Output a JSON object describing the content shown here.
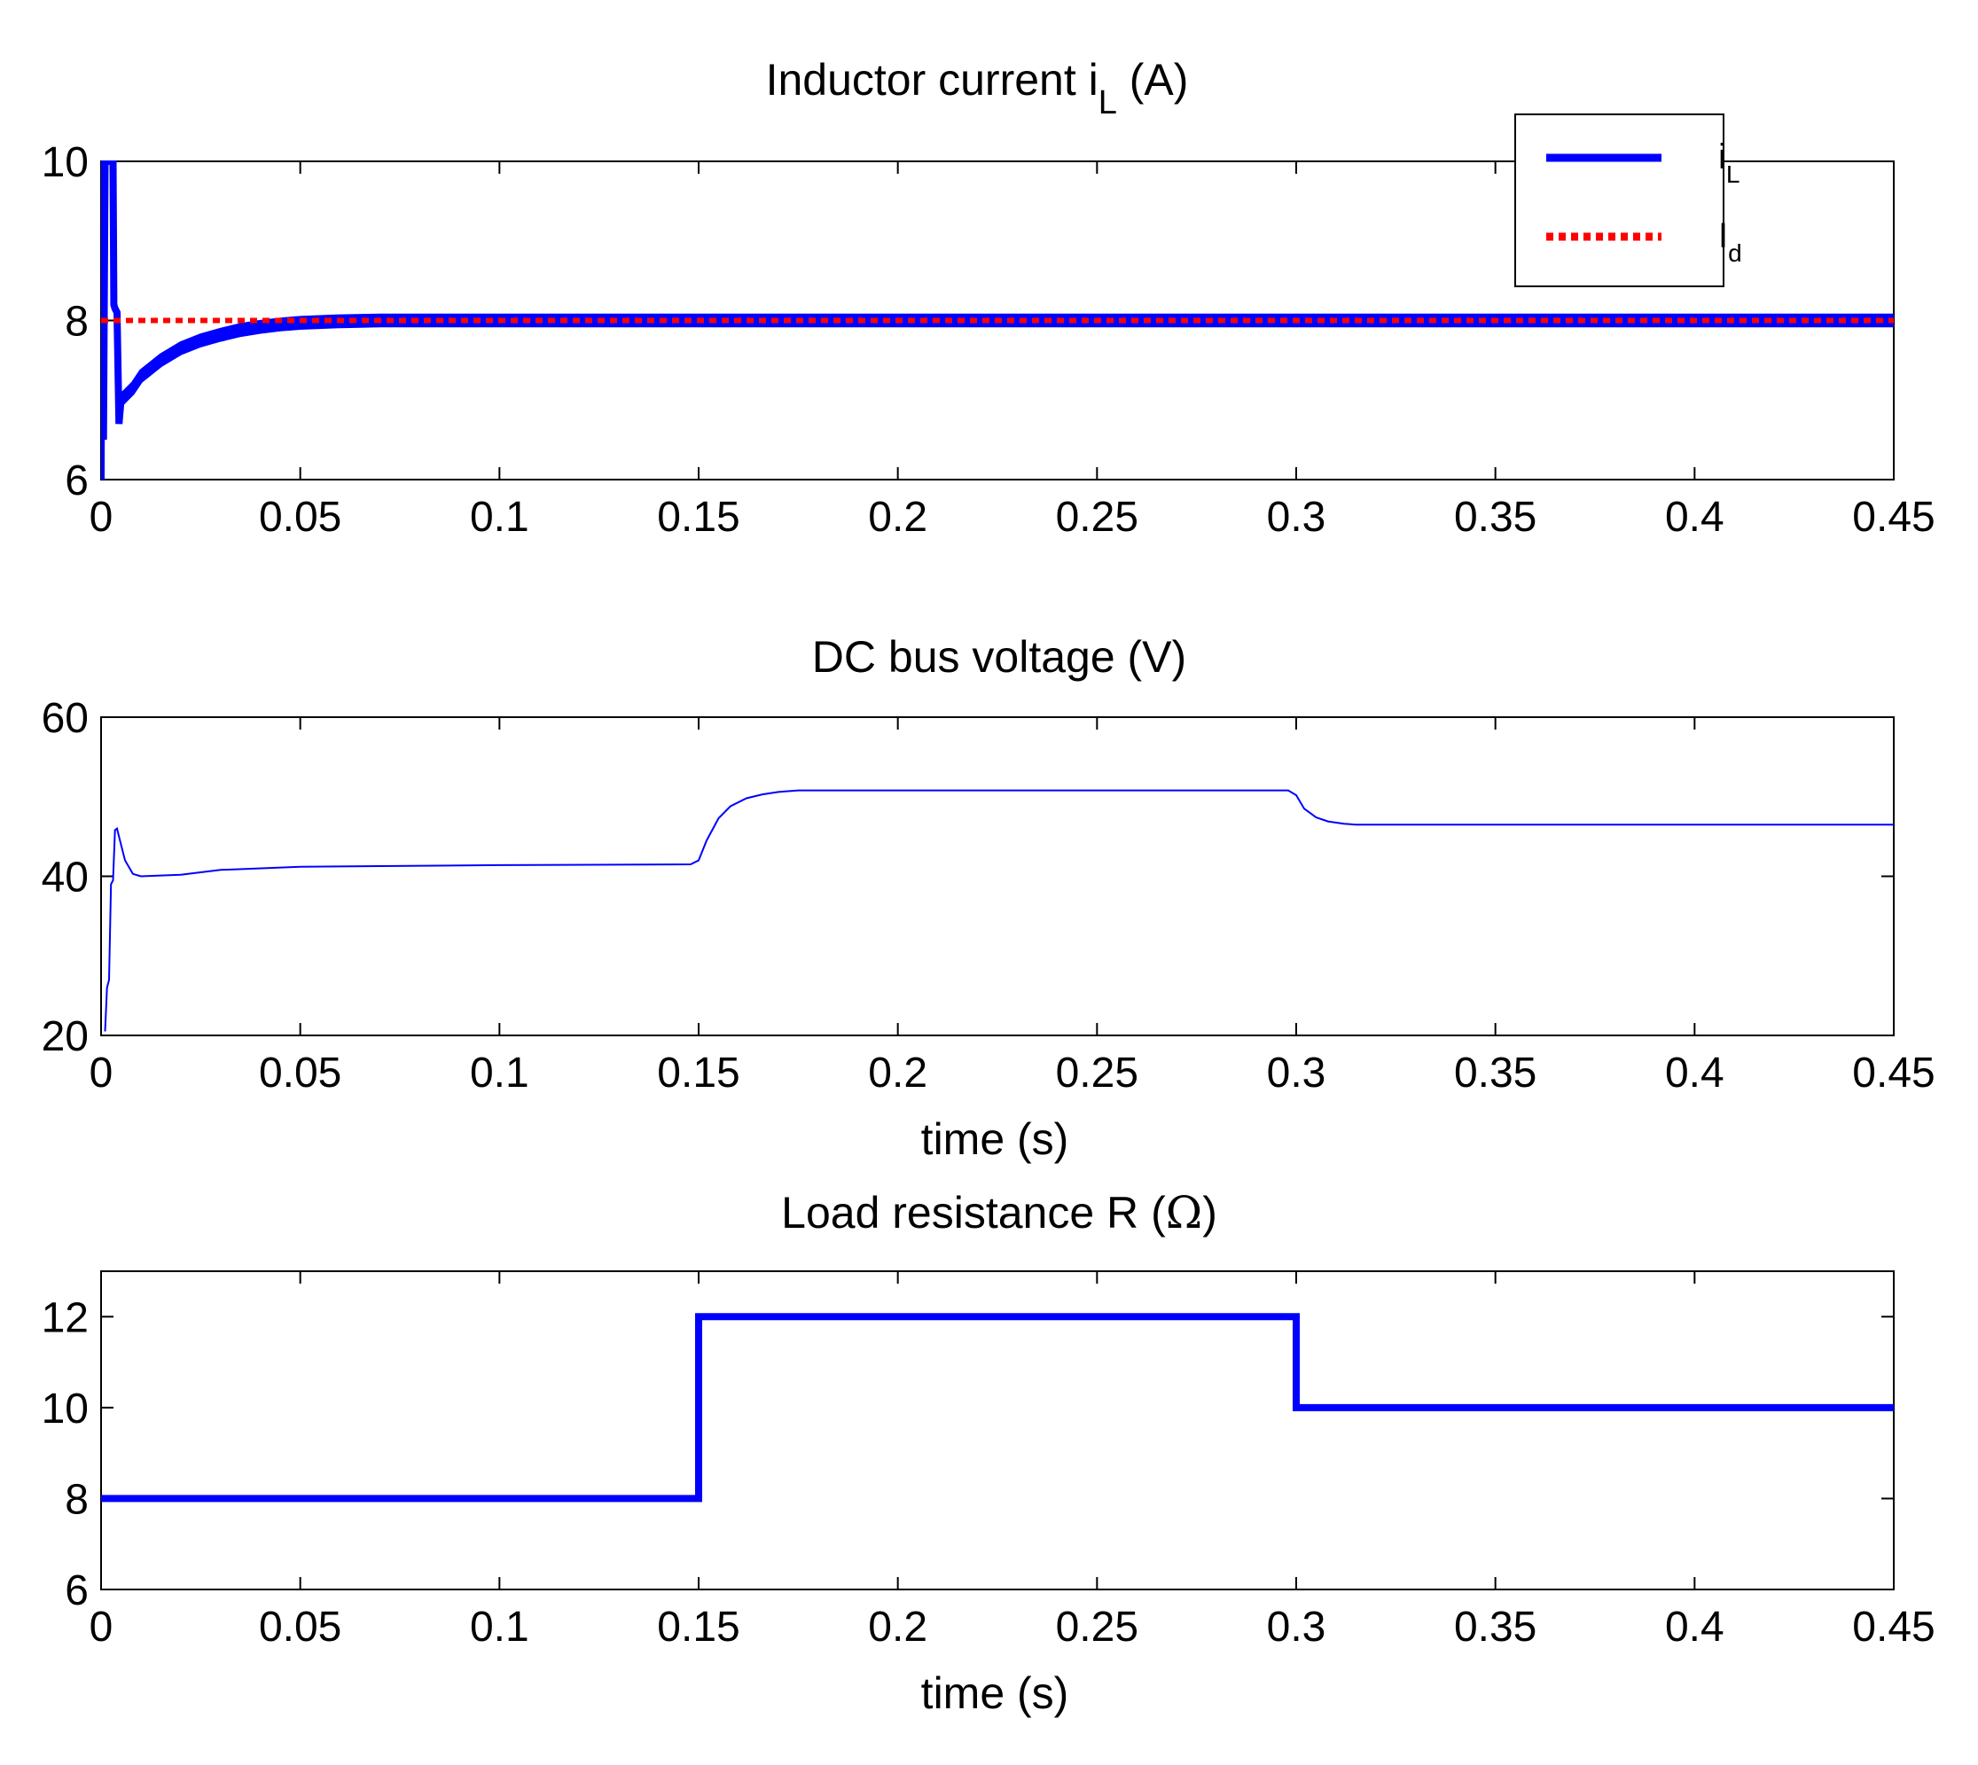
{
  "colors": {
    "series_blue": "#0000ff",
    "reference_red": "#ff0000",
    "axes": "#000000",
    "background": "#ffffff"
  },
  "chart_data": [
    {
      "type": "line",
      "title_main": "Inductor current i",
      "title_sub": "L",
      "title_unit": "(A)",
      "xlabel": "",
      "ylabel": "",
      "xlim": [
        0,
        0.45
      ],
      "ylim": [
        6,
        10
      ],
      "xticks": [
        "0",
        "0.05",
        "0.1",
        "0.15",
        "0.2",
        "0.25",
        "0.3",
        "0.35",
        "0.4",
        "0.45"
      ],
      "yticks": [
        "6",
        "8",
        "10"
      ],
      "grid": false,
      "legend_position": "top-right",
      "legend": [
        {
          "main": "i",
          "sub": "L",
          "style": "solid",
          "color": "#0000ff"
        },
        {
          "main": "I",
          "sub": "d",
          "style": "dotted",
          "color": "#ff0000"
        }
      ],
      "series": [
        {
          "style": "solid",
          "color": "#0000ff",
          "x": [
            0,
            0.0003,
            0.0006,
            0.001,
            0.0015,
            0.002,
            0.0025,
            0.003,
            0.0032,
            0.0035,
            0.004,
            0.0045,
            0.005,
            0.008,
            0.01,
            0.015,
            0.02,
            0.025,
            0.03,
            0.035,
            0.04,
            0.045,
            0.05,
            0.06,
            0.07,
            0.08,
            0.1,
            0.15,
            0.2,
            0.25,
            0.3,
            0.35,
            0.4,
            0.45
          ],
          "y": [
            6.0,
            10.0,
            6.5,
            10.0,
            10.0,
            10.0,
            10.0,
            10.0,
            8.2,
            8.15,
            8.1,
            6.7,
            7.0,
            7.15,
            7.3,
            7.5,
            7.65,
            7.75,
            7.82,
            7.88,
            7.92,
            7.95,
            7.97,
            7.99,
            8.0,
            8.0,
            8.0,
            8.0,
            8.0,
            8.0,
            8.0,
            8.0,
            8.0,
            8.0
          ],
          "ripple_band": 0.13
        },
        {
          "style": "dotted",
          "color": "#ff0000",
          "x": [
            0,
            0.45
          ],
          "y": [
            8,
            8
          ]
        }
      ]
    },
    {
      "type": "line",
      "title": "DC bus voltage (V)",
      "xlabel": "time (s)",
      "ylabel": "",
      "xlim": [
        0,
        0.45
      ],
      "ylim": [
        20,
        60
      ],
      "xticks": [
        "0",
        "0.05",
        "0.1",
        "0.15",
        "0.2",
        "0.25",
        "0.3",
        "0.35",
        "0.4",
        "0.45"
      ],
      "yticks": [
        "20",
        "40",
        "60"
      ],
      "grid": false,
      "series": [
        {
          "style": "solid",
          "color": "#0000ff",
          "x": [
            0.001,
            0.0015,
            0.002,
            0.0025,
            0.003,
            0.0035,
            0.004,
            0.0045,
            0.006,
            0.008,
            0.01,
            0.02,
            0.03,
            0.05,
            0.1,
            0.148,
            0.15,
            0.152,
            0.155,
            0.158,
            0.162,
            0.166,
            0.17,
            0.175,
            0.18,
            0.2,
            0.25,
            0.298,
            0.3,
            0.302,
            0.305,
            0.308,
            0.312,
            0.315,
            0.35,
            0.4,
            0.45
          ],
          "y": [
            20.5,
            26,
            27,
            39,
            39.5,
            45.8,
            46,
            45,
            42,
            40.3,
            40,
            40.2,
            40.8,
            41.2,
            41.4,
            41.5,
            42,
            44.5,
            47.3,
            48.8,
            49.8,
            50.3,
            50.6,
            50.8,
            50.8,
            50.8,
            50.8,
            50.8,
            50.2,
            48.5,
            47.4,
            46.9,
            46.6,
            46.5,
            46.5,
            46.5,
            46.5
          ]
        }
      ]
    },
    {
      "type": "line",
      "title_main": "Load resistance R",
      "title_unit": "Ω",
      "xlabel": "time (s)",
      "ylabel": "",
      "xlim": [
        0,
        0.45
      ],
      "ylim": [
        6,
        13
      ],
      "xticks": [
        "0",
        "0.05",
        "0.1",
        "0.15",
        "0.2",
        "0.25",
        "0.3",
        "0.35",
        "0.4",
        "0.45"
      ],
      "yticks": [
        "6",
        "8",
        "10",
        "12"
      ],
      "grid": false,
      "series": [
        {
          "style": "solid",
          "color": "#0000ff",
          "x": [
            0,
            0.15,
            0.15,
            0.3,
            0.3,
            0.45
          ],
          "y": [
            8,
            8,
            12,
            12,
            10,
            10
          ]
        }
      ]
    }
  ]
}
